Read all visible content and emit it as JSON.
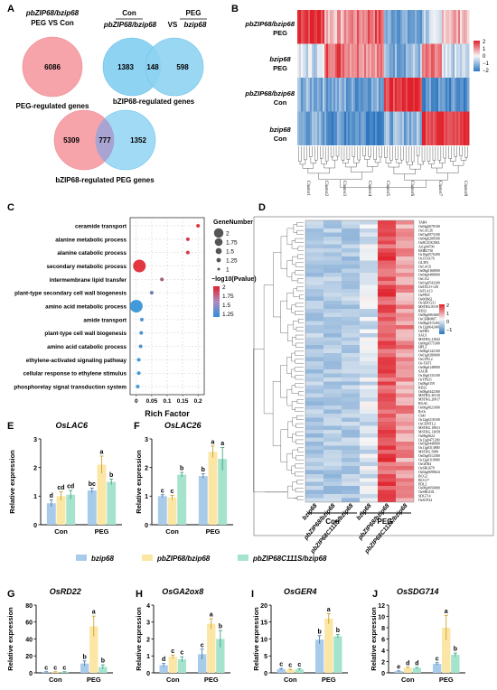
{
  "panel_letters": [
    "A",
    "B",
    "C",
    "D",
    "E",
    "F",
    "G",
    "H",
    "I",
    "J"
  ],
  "colors": {
    "red": "#e0202a",
    "blue": "#2f77c0",
    "white": "#f6f6f6",
    "venn_pink": "#f6a3aa",
    "venn_blue": "#8fd3f2",
    "venn_overlap": "#a8a3d0",
    "bar_blue": "#a9cbea",
    "bar_yellow": "#fbe6a6",
    "bar_green": "#a6e3cc"
  },
  "venn": {
    "top_left": {
      "line1": "pbZIP68/bzip68",
      "line2": "PEG VS Con",
      "value": "6086",
      "caption": "PEG-regulated genes"
    },
    "top_right": {
      "hdr_con": "Con",
      "hdr_peg": "PEG",
      "hdr_l": "pbZIP68/bzip68",
      "hdr_vs": "VS",
      "hdr_r": "bzip68",
      "left": "1383",
      "mid": "148",
      "right": "598",
      "caption": "bZIP68-regulated genes"
    },
    "bottom": {
      "left": "5309",
      "mid": "777",
      "right": "1352",
      "caption": "bZIP68-regulated PEG genes"
    }
  },
  "heatmapB": {
    "row_labels": [
      {
        "l1": "pbZIP68/bzip68",
        "l2": "PEG"
      },
      {
        "l1": "bzip68",
        "l2": "PEG"
      },
      {
        "l1": "pbZIP68/bzip68",
        "l2": "Con"
      },
      {
        "l1": "bzip68",
        "l2": "Con"
      }
    ],
    "clusters": [
      "Cluster1",
      "Cluster2",
      "Cluster3",
      "Cluster4",
      "Cluster5",
      "Cluster6",
      "Cluster7",
      "Cluster8"
    ],
    "legend": [
      "2",
      "1",
      "0",
      "−1",
      "−2"
    ]
  },
  "go": {
    "chart_data": {
      "type": "scatter",
      "terms": [
        "ceramide transport",
        "alanine metabolic process",
        "alanine catabolic process",
        "secondary metabolic process",
        "intermembrane lipid transfer",
        "plant-type secondary cell wall biogenesis",
        "amino acid metabolic process",
        "amide transport",
        "plant-type cell wall biogenesis",
        "amino acid catabolic process",
        "ethylene-activated signaling pathway",
        "cellular response to ethylene stimulus",
        "phosphorelay signal transduction system"
      ],
      "rich_factor": [
        0.2,
        0.167,
        0.167,
        0.01,
        0.083,
        0.05,
        0.0,
        0.018,
        0.016,
        0.014,
        0.008,
        0.008,
        0.005
      ],
      "gene_number": [
        1,
        1,
        1,
        2,
        1,
        1,
        2,
        1,
        1,
        1,
        1,
        1,
        1
      ],
      "neglog10_p": [
        2.0,
        1.95,
        1.95,
        2.05,
        1.7,
        1.45,
        1.25,
        1.3,
        1.3,
        1.3,
        1.25,
        1.25,
        1.25
      ],
      "x_ticks": [
        "0",
        "0.05",
        "0.1",
        "0.15",
        "0.2"
      ],
      "xlim": [
        -0.02,
        0.22
      ],
      "xlabel": "Rich Factor",
      "size_legend_title": "GeneNumber",
      "size_legend": [
        "2",
        "1.75",
        "1.5",
        "1.25",
        "1"
      ],
      "color_legend_title": "−log10(Pvalue)",
      "color_legend": [
        "2",
        "1.75",
        "1.5",
        "1.25"
      ]
    }
  },
  "heatmapD": {
    "genes": [
      "TAR4",
      "Os04g0678100",
      "OsLAC26",
      "Os01g0973100",
      "Os04g0208500",
      "OsB12CK3ML",
      "At1g04700",
      "EMB2750",
      "Os10g0570200",
      "Os15AX76",
      "GL3P2",
      "OsLAC6",
      "Os08g0168000",
      "Os04g0488000",
      "OsCA2",
      "Os01g0543200",
      "OsEXLO-128",
      "OsFLA13",
      "OsPP2C",
      "Os0f0h62",
      "OsABCG31",
      "MSTRG.8519",
      "RD22",
      "Os08g0063600",
      "OsCHR0807",
      "Os08g0315200",
      "Os12g0642400",
      "OsPIP2",
      "SAU1",
      "MSTRG.21842",
      "Os06g0575300",
      "HPL2",
      "Os08g0142100",
      "Os01g0280000",
      "OsLTP2.2",
      "Os-TH71",
      "Os08g0148800",
      "SAUR",
      "Os10g0133100",
      "OsTPS21",
      "Os08g0159",
      "RD22",
      "Os08g0442300",
      "MSTRG.30110",
      "MSTRG.20917",
      "BGAL",
      "Os06g0621600",
      "Rr1b",
      "Cb4f",
      "Os12g0218100",
      "OsCHNTL2",
      "MSTRG.18931",
      "MSTRG.13058",
      "Os08g0624",
      "Os11g0471200",
      "Os03g0440600",
      "Os11g0313800",
      "MSTRG.5089",
      "Os03g0512300",
      "Os12g0119000",
      "OsGER4",
      "OsSRG670",
      "Os04g0698024",
      "BCG2",
      "BCG17",
      "PDL2",
      "Os08g0050000",
      "OsSRGOX",
      "SDG714",
      "OsSCP22"
    ],
    "columns": [
      "bzip68",
      "pbZIP68/bzip68",
      "pbZIP68C111S/bzip68",
      "bzip68",
      "pbZIP68/bzip68",
      "pbZIP68C111S/bzip68"
    ],
    "groups": [
      "Con",
      "PEG"
    ],
    "legend": [
      "2",
      "1",
      "0",
      "−1"
    ]
  },
  "bar_legend": {
    "items": [
      {
        "label": "bzip68",
        "color": "#a9cbea"
      },
      {
        "label": "pbZIP68/bzip68",
        "color": "#fbe6a6"
      },
      {
        "label": "pbZIP68C111S/bzip68",
        "color": "#a6e3cc"
      }
    ]
  },
  "bar_charts": [
    {
      "letter": "E",
      "title": "OsLAC6",
      "ylabel": "Relative expression",
      "ylim": [
        0,
        3
      ],
      "yticks": [
        "0",
        "1",
        "2",
        "3"
      ],
      "categories": [
        "Con",
        "PEG"
      ],
      "chart_data": {
        "type": "bar",
        "series": [
          {
            "name": "bzip68",
            "values": [
              0.75,
              1.2
            ],
            "err": [
              0.12,
              0.08
            ],
            "sig": [
              "d",
              "bc"
            ]
          },
          {
            "name": "pbZIP68/bzip68",
            "values": [
              1.0,
              2.1
            ],
            "err": [
              0.15,
              0.3
            ],
            "sig": [
              "cd",
              "a"
            ]
          },
          {
            "name": "pbZIP68C111S/bzip68",
            "values": [
              1.05,
              1.5
            ],
            "err": [
              0.15,
              0.1
            ],
            "sig": [
              "cd",
              "b"
            ]
          }
        ]
      }
    },
    {
      "letter": "F",
      "title": "OsLAC26",
      "ylabel": "Relative expression",
      "ylim": [
        0,
        3
      ],
      "yticks": [
        "0",
        "1",
        "2",
        "3"
      ],
      "categories": [
        "Con",
        "PEG"
      ],
      "chart_data": {
        "type": "bar",
        "series": [
          {
            "name": "bzip68",
            "values": [
              1.0,
              1.7
            ],
            "err": [
              0.05,
              0.08
            ],
            "sig": [
              "c",
              "b"
            ]
          },
          {
            "name": "pbZIP68/bzip68",
            "values": [
              0.95,
              2.55
            ],
            "err": [
              0.08,
              0.2
            ],
            "sig": [
              "c",
              "a"
            ]
          },
          {
            "name": "pbZIP68C111S/bzip68",
            "values": [
              1.75,
              2.3
            ],
            "err": [
              0.08,
              0.4
            ],
            "sig": [
              "b",
              "a"
            ]
          }
        ]
      }
    },
    {
      "letter": "G",
      "title": "OsRD22",
      "ylabel": "Relative expression",
      "ylim": [
        0,
        80
      ],
      "yticks": [
        "0",
        "20",
        "40",
        "60",
        "80"
      ],
      "categories": [
        "Con",
        "PEG"
      ],
      "chart_data": {
        "type": "bar",
        "series": [
          {
            "name": "bzip68",
            "values": [
              1.0,
              11
            ],
            "err": [
              0.3,
              3
            ],
            "sig": [
              "c",
              "b"
            ]
          },
          {
            "name": "pbZIP68/bzip68",
            "values": [
              1.0,
              55
            ],
            "err": [
              0.3,
              12
            ],
            "sig": [
              "c",
              "a"
            ]
          },
          {
            "name": "pbZIP68C111S/bzip68",
            "values": [
              1.0,
              7
            ],
            "err": [
              0.3,
              2.5
            ],
            "sig": [
              "c",
              "b"
            ]
          }
        ]
      }
    },
    {
      "letter": "H",
      "title": "OsGA2ox8",
      "ylabel": "Relative expression",
      "ylim": [
        0,
        4
      ],
      "yticks": [
        "0",
        "1",
        "2",
        "3",
        "4"
      ],
      "categories": [
        "Con",
        "PEG"
      ],
      "chart_data": {
        "type": "bar",
        "series": [
          {
            "name": "bzip68",
            "values": [
              0.45,
              1.1
            ],
            "err": [
              0.1,
              0.3
            ],
            "sig": [
              "d",
              "c"
            ]
          },
          {
            "name": "pbZIP68/bzip68",
            "values": [
              0.95,
              2.9
            ],
            "err": [
              0.1,
              0.3
            ],
            "sig": [
              "c",
              "a"
            ]
          },
          {
            "name": "pbZIP68C111S/bzip68",
            "values": [
              0.8,
              2.0
            ],
            "err": [
              0.15,
              0.5
            ],
            "sig": [
              "c",
              "b"
            ]
          }
        ]
      }
    },
    {
      "letter": "I",
      "title": "OsGER4",
      "ylabel": "Relative expression",
      "ylim": [
        0,
        20
      ],
      "yticks": [
        "0",
        "5",
        "10",
        "15",
        "20"
      ],
      "categories": [
        "Con",
        "PEG"
      ],
      "chart_data": {
        "type": "bar",
        "series": [
          {
            "name": "bzip68",
            "values": [
              1.1,
              9.8
            ],
            "err": [
              0.2,
              1.2
            ],
            "sig": [
              "c",
              "b"
            ]
          },
          {
            "name": "pbZIP68/bzip68",
            "values": [
              0.9,
              16
            ],
            "err": [
              0.15,
              1.5
            ],
            "sig": [
              "c",
              "a"
            ]
          },
          {
            "name": "pbZIP68C111S/bzip68",
            "values": [
              1.0,
              10.8
            ],
            "err": [
              0.2,
              0.5
            ],
            "sig": [
              "c",
              "b"
            ]
          }
        ]
      }
    },
    {
      "letter": "J",
      "title": "OsSDG714",
      "ylabel": "Relative expression",
      "ylim": [
        0,
        12
      ],
      "yticks": [
        "0",
        "2",
        "4",
        "6",
        "8",
        "10",
        "12"
      ],
      "categories": [
        "Con",
        "PEG"
      ],
      "chart_data": {
        "type": "bar",
        "series": [
          {
            "name": "bzip68",
            "values": [
              0.3,
              1.6
            ],
            "err": [
              0.05,
              0.2
            ],
            "sig": [
              "e",
              "c"
            ]
          },
          {
            "name": "pbZIP68/bzip68",
            "values": [
              0.9,
              8
            ],
            "err": [
              0.1,
              2.2
            ],
            "sig": [
              "d",
              "a"
            ]
          },
          {
            "name": "pbZIP68C111S/bzip68",
            "values": [
              0.85,
              3.2
            ],
            "err": [
              0.1,
              0.3
            ],
            "sig": [
              "d",
              "b"
            ]
          }
        ]
      }
    }
  ]
}
